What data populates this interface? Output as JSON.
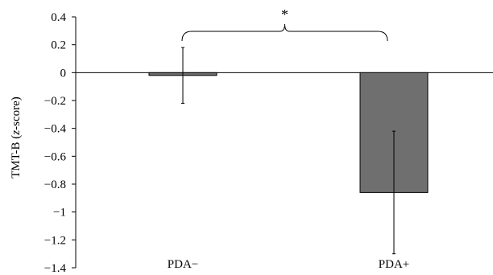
{
  "chart_data": {
    "type": "bar",
    "title": "",
    "xlabel": "",
    "ylabel": "TMT-B (z-score)",
    "ylabel_parts": {
      "prefix": "TMT-B (",
      "italic": "z",
      "suffix": "-score)"
    },
    "categories": [
      "PDA−",
      "PDA+"
    ],
    "values": [
      -0.02,
      -0.86
    ],
    "error": [
      0.2,
      0.44
    ],
    "ylim": [
      -1.4,
      0.4
    ],
    "yticks": [
      0.4,
      0.2,
      0,
      -0.2,
      -0.4,
      -0.6,
      -0.8,
      -1,
      -1.2,
      -1.4
    ],
    "ytick_labels": [
      "0.4",
      "0.2",
      "0",
      "−0.2",
      "−0.4",
      "−0.6",
      "−0.8",
      "−1",
      "−1.2",
      "−1.4"
    ],
    "grid": false,
    "bar_colors": [
      "#6f6f6f",
      "#6f6f6f"
    ],
    "annotation": {
      "text": "*",
      "between": [
        "PDA−",
        "PDA+"
      ]
    }
  }
}
